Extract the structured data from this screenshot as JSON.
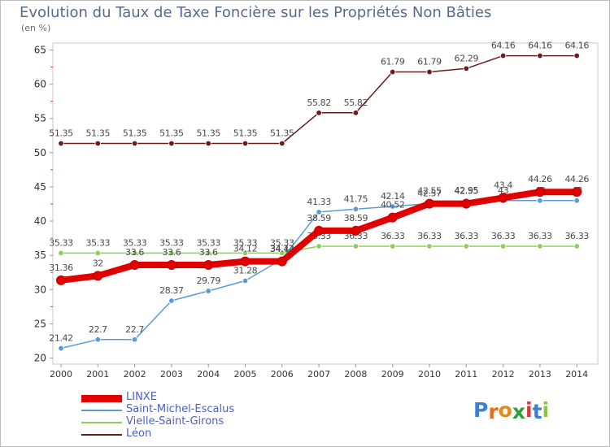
{
  "chart_data": {
    "type": "line",
    "title": "Evolution du Taux de Taxe Foncière sur les Propriétés Non Bâties",
    "unit_label": "(en %)",
    "xlabel": "",
    "ylabel": "",
    "x": [
      "2000",
      "2001",
      "2002",
      "2003",
      "2004",
      "2005",
      "2006",
      "2007",
      "2008",
      "2009",
      "2010",
      "2011",
      "2012",
      "2013",
      "2014"
    ],
    "ylim": [
      20,
      65
    ],
    "yticks": [
      20,
      25,
      30,
      35,
      40,
      45,
      50,
      55,
      60,
      65
    ],
    "grid": false,
    "legend_position": "bottom-left",
    "series": [
      {
        "name": "Vielle-Saint-Girons",
        "color": "#8ccf5a",
        "values": [
          35.33,
          35.33,
          35.33,
          35.33,
          35.33,
          35.33,
          35.33,
          36.33,
          36.33,
          36.33,
          36.33,
          36.33,
          36.33,
          36.33,
          36.33
        ],
        "labels": [
          "35.33",
          "35.33",
          "35.33",
          "35.33",
          "35.33",
          "35.33",
          "35.33",
          "36.33",
          "36.33",
          "36.33",
          "36.33",
          "36.33",
          "36.33",
          "36.33",
          "36.33"
        ]
      },
      {
        "name": "Saint-Michel-Escalus",
        "color": "#5b9bd5",
        "values": [
          21.42,
          22.7,
          22.7,
          28.37,
          29.79,
          31.28,
          34.44,
          41.33,
          41.75,
          42.14,
          42.57,
          42.95,
          43.0,
          43.0,
          43.0
        ],
        "labels": [
          "21.42",
          "22.7",
          "22.7",
          "28.37",
          "29.79",
          "31.28",
          "34.44",
          "41.33",
          "41.75",
          "42.14",
          "42.57",
          "42.95",
          "43",
          "43",
          "43"
        ]
      },
      {
        "name": "Léon",
        "color": "#6b1b1b",
        "values": [
          51.35,
          51.35,
          51.35,
          51.35,
          51.35,
          51.35,
          51.35,
          55.82,
          55.82,
          61.79,
          61.79,
          62.29,
          64.16,
          64.16,
          64.16
        ],
        "labels": [
          "51.35",
          "51.35",
          "51.35",
          "51.35",
          "51.35",
          "51.35",
          "51.35",
          "55.82",
          "55.82",
          "61.79",
          "61.79",
          "62.29",
          "64.16",
          "64.16",
          "64.16"
        ]
      },
      {
        "name": "LINXE",
        "color": "#e00000",
        "values": [
          31.36,
          32.0,
          33.6,
          33.6,
          33.6,
          34.12,
          34.12,
          38.59,
          38.59,
          40.52,
          42.55,
          42.55,
          43.4,
          44.26,
          44.26
        ],
        "labels": [
          "31.36",
          "32",
          "33.6",
          "33.6",
          "33.6",
          "34.12",
          "34.12",
          "38.59",
          "38.59",
          "40.52",
          "42.55",
          "42.55",
          "43.4",
          "44.26",
          "44.26"
        ]
      }
    ],
    "legend_order": [
      "LINXE",
      "Saint-Michel-Escalus",
      "Vielle-Saint-Girons",
      "Léon"
    ]
  },
  "logo": {
    "letters": [
      "P",
      "r",
      "o",
      "x",
      "i",
      "t",
      "i"
    ],
    "colors": [
      "#3a7fd0",
      "#e07020",
      "#e08a20",
      "#2f9e3e",
      "#d53a3a",
      "#3a7fd0",
      "#8cc63f"
    ]
  }
}
